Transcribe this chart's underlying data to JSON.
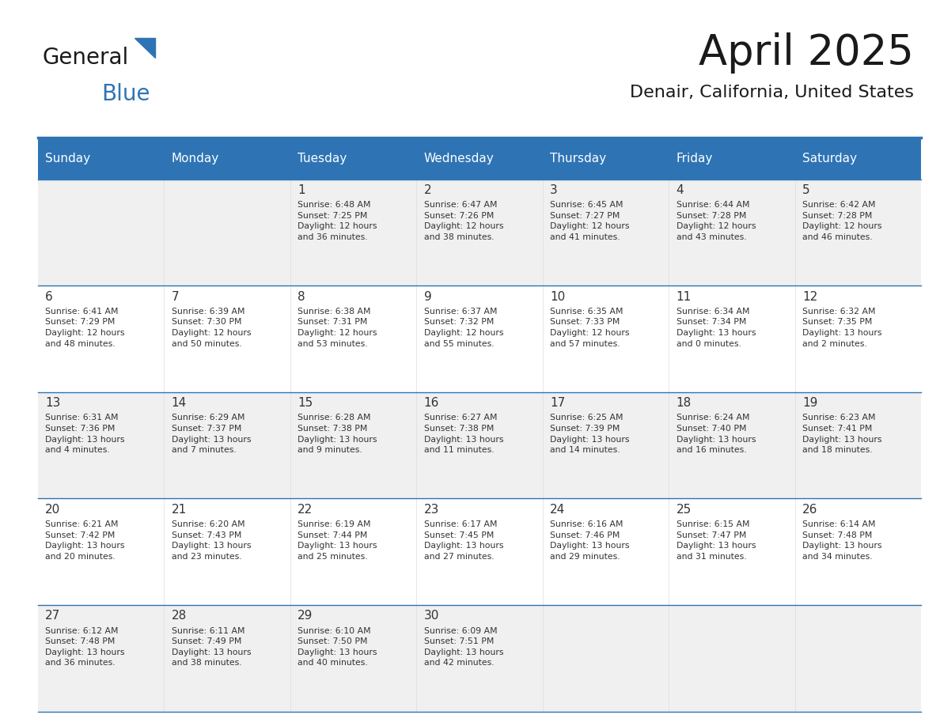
{
  "title": "April 2025",
  "subtitle": "Denair, California, United States",
  "header_color": "#2E74B5",
  "header_text_color": "#FFFFFF",
  "cell_bg_odd": "#F0F0F0",
  "cell_bg_even": "#FFFFFF",
  "border_color": "#2E74B5",
  "text_color": "#333333",
  "days_of_week": [
    "Sunday",
    "Monday",
    "Tuesday",
    "Wednesday",
    "Thursday",
    "Friday",
    "Saturday"
  ],
  "calendar": [
    [
      {
        "day": "",
        "info": ""
      },
      {
        "day": "",
        "info": ""
      },
      {
        "day": "1",
        "info": "Sunrise: 6:48 AM\nSunset: 7:25 PM\nDaylight: 12 hours\nand 36 minutes."
      },
      {
        "day": "2",
        "info": "Sunrise: 6:47 AM\nSunset: 7:26 PM\nDaylight: 12 hours\nand 38 minutes."
      },
      {
        "day": "3",
        "info": "Sunrise: 6:45 AM\nSunset: 7:27 PM\nDaylight: 12 hours\nand 41 minutes."
      },
      {
        "day": "4",
        "info": "Sunrise: 6:44 AM\nSunset: 7:28 PM\nDaylight: 12 hours\nand 43 minutes."
      },
      {
        "day": "5",
        "info": "Sunrise: 6:42 AM\nSunset: 7:28 PM\nDaylight: 12 hours\nand 46 minutes."
      }
    ],
    [
      {
        "day": "6",
        "info": "Sunrise: 6:41 AM\nSunset: 7:29 PM\nDaylight: 12 hours\nand 48 minutes."
      },
      {
        "day": "7",
        "info": "Sunrise: 6:39 AM\nSunset: 7:30 PM\nDaylight: 12 hours\nand 50 minutes."
      },
      {
        "day": "8",
        "info": "Sunrise: 6:38 AM\nSunset: 7:31 PM\nDaylight: 12 hours\nand 53 minutes."
      },
      {
        "day": "9",
        "info": "Sunrise: 6:37 AM\nSunset: 7:32 PM\nDaylight: 12 hours\nand 55 minutes."
      },
      {
        "day": "10",
        "info": "Sunrise: 6:35 AM\nSunset: 7:33 PM\nDaylight: 12 hours\nand 57 minutes."
      },
      {
        "day": "11",
        "info": "Sunrise: 6:34 AM\nSunset: 7:34 PM\nDaylight: 13 hours\nand 0 minutes."
      },
      {
        "day": "12",
        "info": "Sunrise: 6:32 AM\nSunset: 7:35 PM\nDaylight: 13 hours\nand 2 minutes."
      }
    ],
    [
      {
        "day": "13",
        "info": "Sunrise: 6:31 AM\nSunset: 7:36 PM\nDaylight: 13 hours\nand 4 minutes."
      },
      {
        "day": "14",
        "info": "Sunrise: 6:29 AM\nSunset: 7:37 PM\nDaylight: 13 hours\nand 7 minutes."
      },
      {
        "day": "15",
        "info": "Sunrise: 6:28 AM\nSunset: 7:38 PM\nDaylight: 13 hours\nand 9 minutes."
      },
      {
        "day": "16",
        "info": "Sunrise: 6:27 AM\nSunset: 7:38 PM\nDaylight: 13 hours\nand 11 minutes."
      },
      {
        "day": "17",
        "info": "Sunrise: 6:25 AM\nSunset: 7:39 PM\nDaylight: 13 hours\nand 14 minutes."
      },
      {
        "day": "18",
        "info": "Sunrise: 6:24 AM\nSunset: 7:40 PM\nDaylight: 13 hours\nand 16 minutes."
      },
      {
        "day": "19",
        "info": "Sunrise: 6:23 AM\nSunset: 7:41 PM\nDaylight: 13 hours\nand 18 minutes."
      }
    ],
    [
      {
        "day": "20",
        "info": "Sunrise: 6:21 AM\nSunset: 7:42 PM\nDaylight: 13 hours\nand 20 minutes."
      },
      {
        "day": "21",
        "info": "Sunrise: 6:20 AM\nSunset: 7:43 PM\nDaylight: 13 hours\nand 23 minutes."
      },
      {
        "day": "22",
        "info": "Sunrise: 6:19 AM\nSunset: 7:44 PM\nDaylight: 13 hours\nand 25 minutes."
      },
      {
        "day": "23",
        "info": "Sunrise: 6:17 AM\nSunset: 7:45 PM\nDaylight: 13 hours\nand 27 minutes."
      },
      {
        "day": "24",
        "info": "Sunrise: 6:16 AM\nSunset: 7:46 PM\nDaylight: 13 hours\nand 29 minutes."
      },
      {
        "day": "25",
        "info": "Sunrise: 6:15 AM\nSunset: 7:47 PM\nDaylight: 13 hours\nand 31 minutes."
      },
      {
        "day": "26",
        "info": "Sunrise: 6:14 AM\nSunset: 7:48 PM\nDaylight: 13 hours\nand 34 minutes."
      }
    ],
    [
      {
        "day": "27",
        "info": "Sunrise: 6:12 AM\nSunset: 7:48 PM\nDaylight: 13 hours\nand 36 minutes."
      },
      {
        "day": "28",
        "info": "Sunrise: 6:11 AM\nSunset: 7:49 PM\nDaylight: 13 hours\nand 38 minutes."
      },
      {
        "day": "29",
        "info": "Sunrise: 6:10 AM\nSunset: 7:50 PM\nDaylight: 13 hours\nand 40 minutes."
      },
      {
        "day": "30",
        "info": "Sunrise: 6:09 AM\nSunset: 7:51 PM\nDaylight: 13 hours\nand 42 minutes."
      },
      {
        "day": "",
        "info": ""
      },
      {
        "day": "",
        "info": ""
      },
      {
        "day": "",
        "info": ""
      }
    ]
  ],
  "logo_text_general": "General",
  "logo_text_blue": "Blue",
  "logo_color_general": "#1a1a1a",
  "logo_color_blue": "#2E74B5",
  "logo_triangle_color": "#2E74B5",
  "title_fontsize": 38,
  "subtitle_fontsize": 16,
  "day_header_fontsize": 11,
  "day_num_fontsize": 11,
  "info_fontsize": 7.8
}
